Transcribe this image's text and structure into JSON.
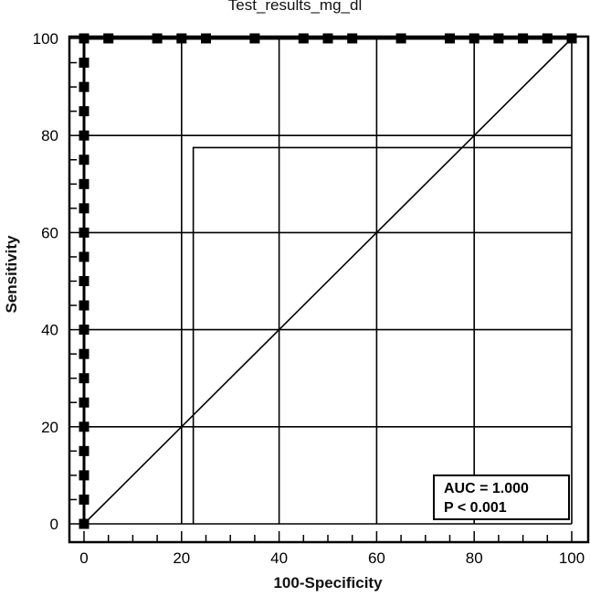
{
  "chart_data": {
    "type": "line",
    "title": "Test_results_mg_dl",
    "xlabel": "100-Specificity",
    "ylabel": "Sensitivity",
    "xlim": [
      0,
      100
    ],
    "ylim": [
      0,
      100
    ],
    "x_ticks": [
      0,
      20,
      40,
      60,
      80,
      100
    ],
    "y_ticks": [
      0,
      20,
      40,
      60,
      80,
      100
    ],
    "grid": true,
    "series": [
      {
        "style": "step-markers",
        "points": [
          [
            0,
            0
          ],
          [
            0,
            5
          ],
          [
            0,
            10
          ],
          [
            0,
            15
          ],
          [
            0,
            20
          ],
          [
            0,
            25
          ],
          [
            0,
            30
          ],
          [
            0,
            35
          ],
          [
            0,
            40
          ],
          [
            0,
            45
          ],
          [
            0,
            50
          ],
          [
            0,
            55
          ],
          [
            0,
            60
          ],
          [
            0,
            65
          ],
          [
            0,
            70
          ],
          [
            0,
            75
          ],
          [
            0,
            80
          ],
          [
            0,
            85
          ],
          [
            0,
            90
          ],
          [
            0,
            95
          ],
          [
            0,
            100
          ],
          [
            5,
            100
          ],
          [
            15,
            100
          ],
          [
            20,
            100
          ],
          [
            25,
            100
          ],
          [
            35,
            100
          ],
          [
            45,
            100
          ],
          [
            50,
            100
          ],
          [
            55,
            100
          ],
          [
            65,
            100
          ],
          [
            75,
            100
          ],
          [
            80,
            100
          ],
          [
            85,
            100
          ],
          [
            90,
            100
          ],
          [
            95,
            100
          ],
          [
            100,
            100
          ]
        ]
      },
      {
        "style": "diagonal-reference",
        "points": [
          [
            0,
            0
          ],
          [
            100,
            100
          ]
        ]
      }
    ],
    "criterion_line": {
      "points": [
        [
          22.4,
          0
        ],
        [
          22.4,
          77.5
        ],
        [
          100,
          77.5
        ]
      ]
    },
    "annotation": {
      "line1": "AUC = 1.000",
      "line2": "P < 0.001"
    }
  }
}
